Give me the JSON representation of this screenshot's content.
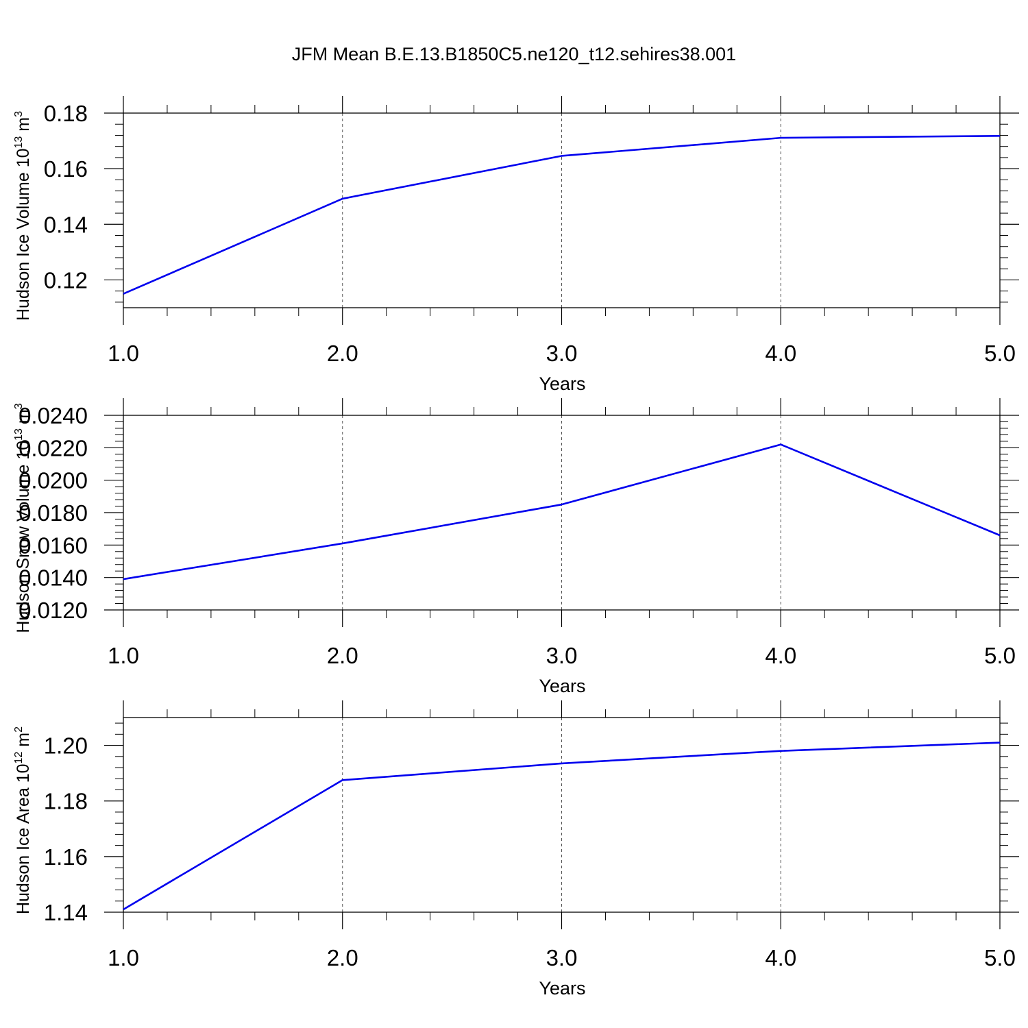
{
  "title": "JFM Mean B.E.13.B1850C5.ne120_t12.sehires38.001",
  "colors": {
    "line": "#0000ee",
    "axis": "#000000",
    "grid": "#555555"
  },
  "chart_data": [
    {
      "type": "line",
      "x": [
        1.0,
        2.0,
        3.0,
        4.0,
        5.0
      ],
      "values": [
        0.115,
        0.1492,
        0.1646,
        0.1711,
        0.1718
      ],
      "xlabel": "Years",
      "ylabel": {
        "text": "Hudson Ice Volume 10",
        "sup1": "13",
        "mid": " m",
        "sup2": "3"
      },
      "xlim": [
        1.0,
        5.0
      ],
      "ylim": [
        0.11,
        0.18
      ],
      "xticks": [
        "1.0",
        "2.0",
        "3.0",
        "4.0",
        "5.0"
      ],
      "yticks": [
        0.12,
        0.14,
        0.16,
        0.18
      ],
      "ytick_labels": [
        "0.12",
        "0.14",
        "0.16",
        "0.18"
      ],
      "vertical_grid": true
    },
    {
      "type": "line",
      "x": [
        1.0,
        2.0,
        3.0,
        4.0,
        5.0
      ],
      "values": [
        0.0139,
        0.0161,
        0.0185,
        0.0222,
        0.0166
      ],
      "xlabel": "Years",
      "ylabel": {
        "text": "Hudson Snow Volume 10",
        "sup1": "13",
        "mid": " m",
        "sup2": "3"
      },
      "xlim": [
        1.0,
        5.0
      ],
      "ylim": [
        0.012,
        0.024
      ],
      "xticks": [
        "1.0",
        "2.0",
        "3.0",
        "4.0",
        "5.0"
      ],
      "yticks": [
        0.012,
        0.014,
        0.016,
        0.018,
        0.02,
        0.022,
        0.024
      ],
      "ytick_labels": [
        "0.0120",
        "0.0140",
        "0.0160",
        "0.0180",
        "0.0200",
        "0.0220",
        "0.0240"
      ],
      "vertical_grid": true
    },
    {
      "type": "line",
      "x": [
        1.0,
        2.0,
        3.0,
        4.0,
        5.0
      ],
      "values": [
        1.141,
        1.1875,
        1.1935,
        1.198,
        1.201
      ],
      "xlabel": "Years",
      "ylabel": {
        "text": "Hudson Ice Area 10",
        "sup1": "12",
        "mid": " m",
        "sup2": "2"
      },
      "xlim": [
        1.0,
        5.0
      ],
      "ylim": [
        1.14,
        1.21
      ],
      "xticks": [
        "1.0",
        "2.0",
        "3.0",
        "4.0",
        "5.0"
      ],
      "yticks": [
        1.14,
        1.16,
        1.18,
        1.2
      ],
      "ytick_labels": [
        "1.14",
        "1.16",
        "1.18",
        "1.20"
      ],
      "vertical_grid": true
    }
  ]
}
